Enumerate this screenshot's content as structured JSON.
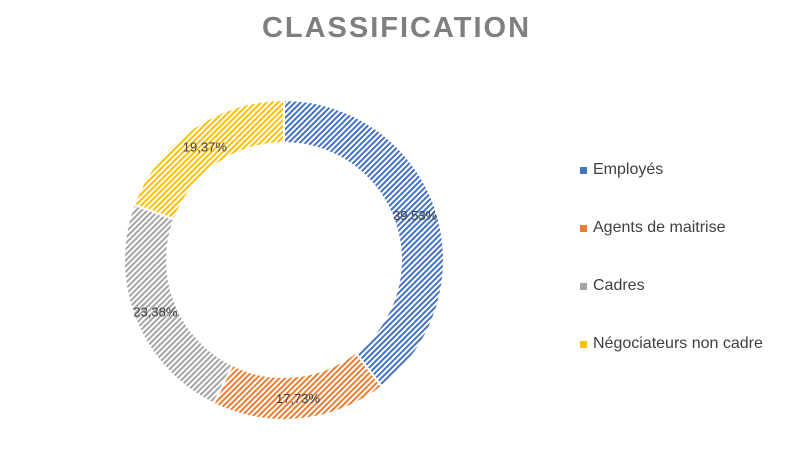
{
  "chart_data": {
    "type": "pie",
    "title": "CLASSIFICATION",
    "categories": [
      "Employés",
      "Agents de maitrise",
      "Cadres",
      "Négociateurs non cadre"
    ],
    "values": [
      39.53,
      17.73,
      23.38,
      19.37
    ],
    "data_labels": [
      "39,53%",
      "17,73%",
      "23,38%",
      "19,37%"
    ],
    "colors": [
      "#4472c4",
      "#ed7d31",
      "#a5a5a5",
      "#ffc000"
    ],
    "hole": "donut",
    "pattern": "diagonal hatch",
    "legend_position": "right"
  }
}
